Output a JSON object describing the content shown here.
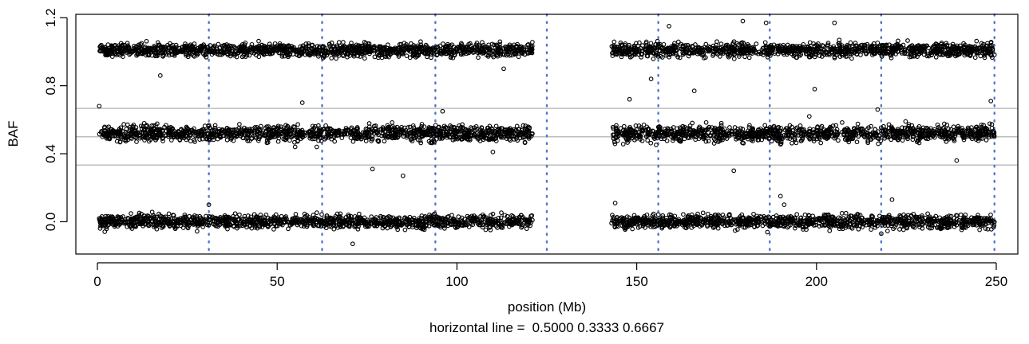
{
  "chart_data": {
    "type": "scatter",
    "title": "",
    "xlabel": "position (Mb)",
    "ylabel": "BAF",
    "caption_label": "horizontal line =",
    "caption_values": "0.5000 0.3333 0.6667",
    "xlim": [
      -6,
      256
    ],
    "ylim": [
      -0.19,
      1.22
    ],
    "x_ticks": [
      0,
      50,
      100,
      150,
      200,
      250
    ],
    "x_tick_labels": [
      "0",
      "50",
      "100",
      "150",
      "200",
      "250"
    ],
    "y_ticks": [
      0.0,
      0.4,
      0.8,
      1.2
    ],
    "y_tick_labels": [
      "0.0",
      "0.4",
      "0.8",
      "1.2"
    ],
    "horizontal_lines": [
      0.5,
      0.3333,
      0.6667
    ],
    "vertical_dotted_lines_x": [
      31,
      62.5,
      94,
      125,
      156,
      187,
      218,
      249.5
    ],
    "segments": [
      {
        "x_range": [
          0.5,
          121
        ],
        "bands": [
          {
            "center": 0.0,
            "spread": 0.035
          },
          {
            "center": 0.52,
            "spread": 0.04
          },
          {
            "center": 1.01,
            "spread": 0.035
          }
        ]
      },
      {
        "x_range": [
          143,
          249.5
        ],
        "bands": [
          {
            "center": 0.0,
            "spread": 0.035
          },
          {
            "center": 0.52,
            "spread": 0.04
          },
          {
            "center": 1.01,
            "spread": 0.035
          }
        ]
      }
    ],
    "outliers": [
      {
        "x": 0.5,
        "y": 0.68
      },
      {
        "x": 17.5,
        "y": 0.86
      },
      {
        "x": 28,
        "y": 0.53
      },
      {
        "x": 31,
        "y": 0.1
      },
      {
        "x": 55,
        "y": 0.44
      },
      {
        "x": 57,
        "y": 0.7
      },
      {
        "x": 61,
        "y": 0.44
      },
      {
        "x": 71,
        "y": -0.13
      },
      {
        "x": 76.5,
        "y": 0.31
      },
      {
        "x": 85,
        "y": 0.27
      },
      {
        "x": 96,
        "y": 0.65
      },
      {
        "x": 110,
        "y": 0.41
      },
      {
        "x": 113,
        "y": 0.9
      },
      {
        "x": 148,
        "y": 0.72
      },
      {
        "x": 144,
        "y": 0.11
      },
      {
        "x": 152,
        "y": 0.57
      },
      {
        "x": 154,
        "y": 0.84
      },
      {
        "x": 159,
        "y": 1.15
      },
      {
        "x": 166,
        "y": 0.77
      },
      {
        "x": 177,
        "y": 0.3
      },
      {
        "x": 179.5,
        "y": 1.18
      },
      {
        "x": 186,
        "y": 1.17
      },
      {
        "x": 190,
        "y": 0.15
      },
      {
        "x": 191,
        "y": 0.1
      },
      {
        "x": 198,
        "y": 0.62
      },
      {
        "x": 199.5,
        "y": 0.78
      },
      {
        "x": 205,
        "y": 1.17
      },
      {
        "x": 217,
        "y": 0.66
      },
      {
        "x": 218,
        "y": -0.07
      },
      {
        "x": 221,
        "y": 0.13
      },
      {
        "x": 239,
        "y": 0.36
      },
      {
        "x": 248.5,
        "y": 0.71
      }
    ]
  }
}
